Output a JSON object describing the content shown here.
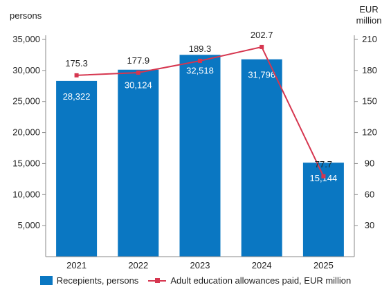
{
  "chart_data": {
    "type": "bar",
    "categories": [
      "2021",
      "2022",
      "2023",
      "2024",
      "2025"
    ],
    "series": [
      {
        "name": "Recepients, persons",
        "type": "bar",
        "axis": "left",
        "values": [
          28322,
          30124,
          32518,
          31796,
          15144
        ],
        "labels": [
          "28,322",
          "30,124",
          "32,518",
          "31,796",
          "15,144"
        ],
        "color": "#0a77c2"
      },
      {
        "name": "Adult education allowances paid, EUR million",
        "type": "line",
        "axis": "right",
        "values": [
          175.3,
          177.9,
          189.3,
          202.7,
          77.7
        ],
        "labels": [
          "175.3",
          "177.9",
          "189.3",
          "202.7",
          "77.7"
        ],
        "color": "#d6364f"
      }
    ],
    "left_axis": {
      "title": "persons",
      "range": [
        0,
        35000
      ],
      "ticks": [
        5000,
        10000,
        15000,
        20000,
        25000,
        30000,
        35000
      ],
      "tick_labels": [
        "5,000",
        "10,000",
        "15,000",
        "20,000",
        "25,000",
        "30,000",
        "35,000"
      ]
    },
    "right_axis": {
      "title_lines": [
        "EUR",
        "million"
      ],
      "range": [
        0,
        210
      ],
      "ticks": [
        30,
        60,
        90,
        120,
        150,
        180,
        210
      ],
      "tick_labels": [
        "30",
        "60",
        "90",
        "120",
        "150",
        "180",
        "210"
      ]
    },
    "grid": false,
    "legend_position": "bottom"
  }
}
